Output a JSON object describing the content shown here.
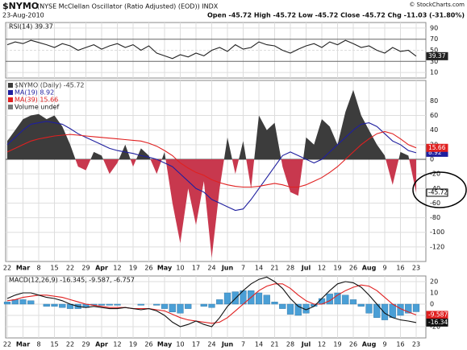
{
  "header": {
    "symbol": "$NYMO",
    "name": "(NYSE McClellan Oscillator (Ratio Adjusted) (EOD)) INDX",
    "date": "23-Aug-2010",
    "quote": "Open -45.72  High -45.72  Low -45.72  Close -45.72  Chg -11.03 (-31.80%)",
    "source": "© StockCharts.com"
  },
  "chart_data": [
    {
      "type": "line",
      "title": "RSI(14) 39.37",
      "ylim": [
        0,
        100
      ],
      "yticks": [
        90,
        70,
        50,
        30,
        10
      ],
      "grid": true,
      "series": [
        {
          "name": "RSI(14)",
          "color": "#222222",
          "tag": true,
          "values": [
            60,
            65,
            62,
            68,
            64,
            60,
            55,
            62,
            58,
            50,
            55,
            60,
            52,
            58,
            62,
            55,
            60,
            50,
            58,
            45,
            40,
            35,
            42,
            38,
            45,
            40,
            50,
            55,
            48,
            60,
            52,
            55,
            65,
            60,
            58,
            50,
            45,
            52,
            58,
            62,
            55,
            65,
            60,
            68,
            62,
            55,
            58,
            50,
            45,
            55,
            48,
            50,
            39.37
          ]
        }
      ]
    },
    {
      "type": "area",
      "ylim": [
        -140,
        108
      ],
      "yticks": [
        80,
        60,
        40,
        20,
        0,
        -20,
        -40,
        -60,
        -80,
        -100,
        -120
      ],
      "grid": true,
      "legend": true,
      "volume_label": "Volume undef",
      "categories": [
        "22",
        null,
        "Mar",
        null,
        "8",
        null,
        "15",
        null,
        "22",
        null,
        "29",
        null,
        "Apr",
        null,
        "12",
        null,
        "19",
        null,
        "26",
        null,
        "May",
        null,
        "10",
        null,
        "17",
        null,
        "24",
        null,
        "Jun",
        null,
        "7",
        null,
        "14",
        null,
        "21",
        null,
        "28",
        null,
        "Jul",
        null,
        "12",
        null,
        "19",
        null,
        "26",
        null,
        "Aug",
        null,
        "9",
        null,
        "16",
        null,
        "23"
      ],
      "series": [
        {
          "name": "$NYMO (Daily) -45.72",
          "type": "area",
          "color": "#3c3c3c",
          "negative_color": "#c8384e",
          "tag": true,
          "values": [
            25,
            40,
            55,
            60,
            62,
            55,
            60,
            45,
            20,
            -10,
            -15,
            10,
            5,
            -20,
            -5,
            20,
            -10,
            15,
            5,
            -20,
            10,
            -60,
            -115,
            -40,
            -90,
            -30,
            -135,
            -40,
            30,
            -20,
            25,
            -40,
            60,
            40,
            50,
            -10,
            -45,
            -50,
            30,
            20,
            55,
            45,
            20,
            65,
            95,
            60,
            40,
            20,
            5,
            -35,
            10,
            5,
            -45.72
          ]
        },
        {
          "name": "MA(19) 8.92",
          "type": "line",
          "color": "#1f1f9f",
          "tag": true,
          "values": [
            20,
            30,
            40,
            48,
            50,
            52,
            50,
            48,
            42,
            35,
            30,
            25,
            20,
            15,
            12,
            10,
            8,
            5,
            3,
            0,
            -5,
            -10,
            -20,
            -30,
            -40,
            -45,
            -55,
            -60,
            -65,
            -70,
            -68,
            -55,
            -40,
            -25,
            -10,
            5,
            10,
            5,
            0,
            -5,
            0,
            10,
            20,
            30,
            40,
            48,
            50,
            45,
            35,
            25,
            20,
            12,
            8.92
          ]
        },
        {
          "name": "MA(39) 15.66",
          "type": "line",
          "color": "#e02020",
          "tag": true,
          "values": [
            10,
            15,
            20,
            25,
            28,
            30,
            32,
            33,
            34,
            33,
            32,
            31,
            30,
            29,
            28,
            27,
            26,
            25,
            22,
            18,
            12,
            5,
            -5,
            -12,
            -18,
            -22,
            -28,
            -32,
            -35,
            -37,
            -38,
            -38,
            -37,
            -35,
            -33,
            -35,
            -38,
            -38,
            -35,
            -30,
            -25,
            -18,
            -10,
            0,
            10,
            20,
            28,
            35,
            38,
            35,
            28,
            20,
            15.66
          ]
        }
      ]
    },
    {
      "type": "line",
      "title": "MACD(12,26,9) -16.345, -9.587, -6.757",
      "ylim": [
        -30,
        25
      ],
      "yticks": [
        20,
        10,
        0,
        -10,
        -20
      ],
      "grid": true,
      "categories": [
        "22",
        null,
        "Mar",
        null,
        "8",
        null,
        "15",
        null,
        "22",
        null,
        "29",
        null,
        "Apr",
        null,
        "12",
        null,
        "19",
        null,
        "26",
        null,
        "May",
        null,
        "10",
        null,
        "17",
        null,
        "24",
        null,
        "Jun",
        null,
        "7",
        null,
        "14",
        null,
        "21",
        null,
        "28",
        null,
        "Jul",
        null,
        "12",
        null,
        "19",
        null,
        "26",
        null,
        "Aug",
        null,
        "9",
        null,
        "16",
        null,
        "23"
      ],
      "series": [
        {
          "name": "Histogram",
          "type": "bar",
          "color": "#4a9fd6",
          "values": [
            2,
            4,
            4,
            3,
            0,
            -2,
            -2,
            -3,
            -4,
            -4,
            -3,
            -1,
            -1,
            -1,
            -1,
            0,
            0,
            -1,
            0,
            -1,
            -4,
            -7,
            -8,
            -4,
            0,
            -2,
            -3,
            4,
            10,
            11,
            12,
            12,
            10,
            8,
            2,
            -4,
            -9,
            -10,
            -8,
            -2,
            5,
            9,
            10,
            8,
            4,
            -2,
            -8,
            -12,
            -14,
            -12,
            -10,
            -8,
            -6.757
          ]
        },
        {
          "name": "Signal",
          "type": "line",
          "color": "#e02020",
          "tag": true,
          "values": [
            3,
            4,
            6,
            7,
            8,
            8,
            7,
            6,
            4,
            2,
            0,
            -1,
            -2,
            -3,
            -3,
            -3,
            -4,
            -4,
            -4,
            -5,
            -6,
            -9,
            -12,
            -14,
            -15,
            -16,
            -17,
            -16,
            -12,
            -6,
            0,
            6,
            12,
            16,
            18,
            18,
            14,
            8,
            3,
            0,
            0,
            3,
            8,
            12,
            15,
            17,
            16,
            12,
            6,
            0,
            -4,
            -7,
            -9.587
          ]
        },
        {
          "name": "MACD",
          "type": "line",
          "color": "#111111",
          "tag": true,
          "values": [
            5,
            8,
            10,
            10,
            8,
            6,
            5,
            3,
            0,
            -2,
            -3,
            -2,
            -3,
            -4,
            -4,
            -3,
            -4,
            -5,
            -4,
            -6,
            -10,
            -16,
            -20,
            -18,
            -15,
            -18,
            -20,
            -12,
            -2,
            5,
            12,
            18,
            22,
            24,
            20,
            14,
            5,
            -2,
            -5,
            -2,
            5,
            12,
            18,
            20,
            19,
            15,
            8,
            0,
            -8,
            -12,
            -14,
            -15,
            -16.345
          ]
        }
      ]
    }
  ]
}
